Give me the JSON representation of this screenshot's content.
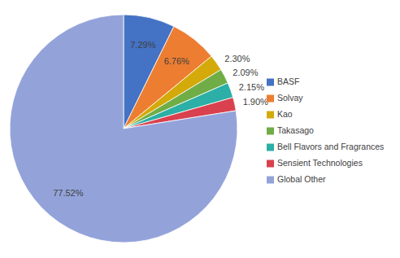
{
  "chart_data": {
    "type": "pie",
    "categories": [
      "BASF",
      "Solvay",
      "Kao",
      "Takasago",
      "Bell Flavors and Fragrances",
      "Sensient Technologies",
      "Global Other"
    ],
    "values": [
      7.29,
      6.76,
      2.3,
      2.09,
      2.15,
      1.9,
      77.52
    ],
    "value_labels": [
      "7.29%",
      "6.76%",
      "2.30%",
      "2.09%",
      "2.15%",
      "1.90%",
      "77.52%"
    ],
    "colors": [
      "#4472c4",
      "#ed7d31",
      "#d4aa0a",
      "#70ad47",
      "#2bafa6",
      "#d9414e",
      "#93a3da"
    ],
    "data_labels": true,
    "legend": "right"
  }
}
